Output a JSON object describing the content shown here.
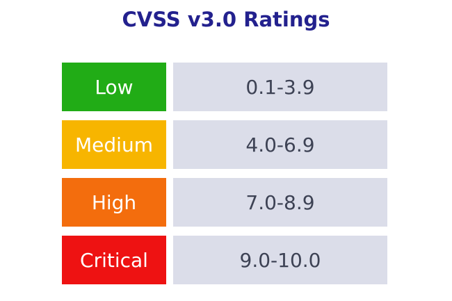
{
  "title": "CVSS v3.0 Ratings",
  "colors": {
    "page_bg": "#ffffff",
    "title_text": "#23218E",
    "label_text": "#ffffff",
    "range_bg": "#DBDDE9",
    "range_text": "#3D4254"
  },
  "table": {
    "rows": [
      {
        "label": "Low",
        "range": "0.1-3.9",
        "color": "#21AC16"
      },
      {
        "label": "Medium",
        "range": "4.0-6.9",
        "color": "#F7B500"
      },
      {
        "label": "High",
        "range": "7.0-8.9",
        "color": "#F36D0D"
      },
      {
        "label": "Critical",
        "range": "9.0-10.0",
        "color": "#EE1212"
      }
    ]
  },
  "chart_data": {
    "type": "table",
    "title": "CVSS v3.0 Ratings",
    "rows": [
      [
        "Low",
        "0.1-3.9"
      ],
      [
        "Medium",
        "4.0-6.9"
      ],
      [
        "High",
        "7.0-8.9"
      ],
      [
        "Critical",
        "9.0-10.0"
      ]
    ],
    "row_colors": [
      "#21AC16",
      "#F7B500",
      "#F36D0D",
      "#EE1212"
    ],
    "legend_position": "none",
    "grid": false
  }
}
